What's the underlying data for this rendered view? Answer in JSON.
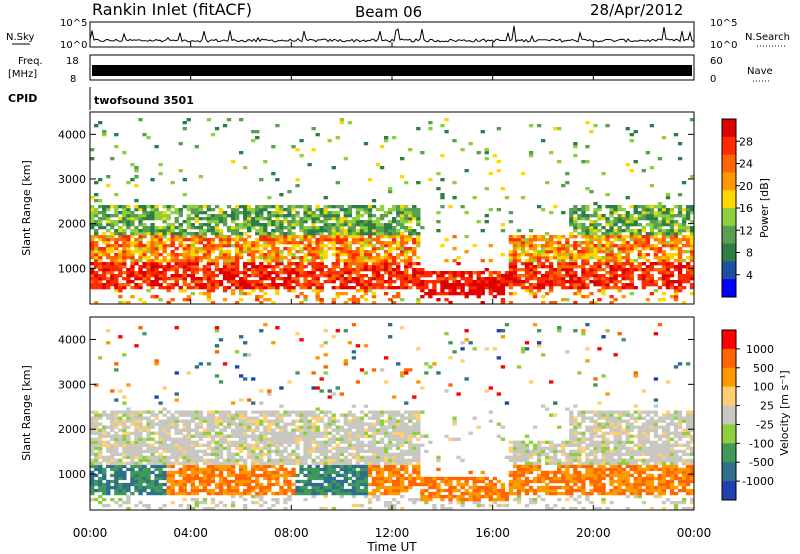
{
  "header": {
    "station": "Rankin Inlet (fitACF)",
    "beam": "Beam 06",
    "date": "28/Apr/2012"
  },
  "top_panels": {
    "nsky_label": "N.Sky",
    "nsky_ticks": [
      "10^5",
      "10^0"
    ],
    "nsearch_label": "N.Search",
    "nsearch_ticks": [
      "10^5",
      "10^0"
    ],
    "freq_label_1": "Freq.",
    "freq_label_2": "[MHz]",
    "freq_ticks": [
      "18",
      "8"
    ],
    "nave_label": "Nave",
    "nave_ticks": [
      "60",
      "0"
    ],
    "cpid_label": "CPID",
    "cpid_value": "twofsound 3501"
  },
  "chart_data": [
    {
      "type": "heatmap",
      "name": "power",
      "ylabel": "Slant Range [km]",
      "ylim": [
        200,
        4500
      ],
      "yticks": [
        "1000",
        "2000",
        "3000",
        "4000"
      ],
      "xlim_hours": [
        0,
        24
      ],
      "colorbar": {
        "label": "Power [dB]",
        "ticks": [
          "4",
          "8",
          "12",
          "16",
          "20",
          "24",
          "28"
        ],
        "colors": [
          "#0000ff",
          "#1f4fa0",
          "#2e7d46",
          "#58a050",
          "#8fcf3c",
          "#ffd700",
          "#ff9900",
          "#ff6600",
          "#ff2a00",
          "#e00000"
        ]
      }
    },
    {
      "type": "heatmap",
      "name": "velocity",
      "ylabel": "Slant Range [km]",
      "ylim": [
        200,
        4500
      ],
      "yticks": [
        "1000",
        "2000",
        "3000",
        "4000"
      ],
      "xlim_hours": [
        0,
        24
      ],
      "colorbar": {
        "label": "Velocity [m s⁻¹]",
        "ticks": [
          "1000",
          "500",
          "100",
          "25",
          "-25",
          "-100",
          "-500",
          "-1000"
        ],
        "colors": [
          "#2040b0",
          "#2e6f8a",
          "#3f9a5a",
          "#8fcf3c",
          "#c8c8c0",
          "#ffcf70",
          "#ff9900",
          "#ff6600",
          "#ff0000"
        ]
      }
    }
  ],
  "x_axis": {
    "ticks": [
      "00:00",
      "04:00",
      "08:00",
      "12:00",
      "16:00",
      "20:00",
      "00:00"
    ],
    "label": "Time UT"
  }
}
